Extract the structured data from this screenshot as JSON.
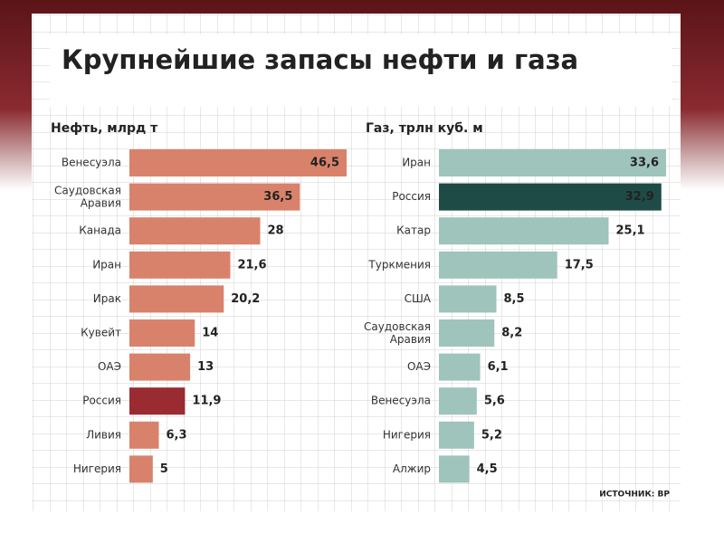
{
  "title": "Крупнейшие запасы нефти и газа",
  "source": "ИСТОЧНИК: BP",
  "chart_data": [
    {
      "type": "bar",
      "orientation": "horizontal",
      "title": "Нефть, млрд т",
      "categories": [
        "Венесуэла",
        "Саудовская Аравия",
        "Канада",
        "Иран",
        "Ирак",
        "Кувейт",
        "ОАЭ",
        "Россия",
        "Ливия",
        "Нигерия"
      ],
      "values": [
        46.5,
        36.5,
        28,
        21.6,
        20.2,
        14,
        13,
        11.9,
        6.3,
        5
      ],
      "value_labels": [
        "46,5",
        "36,5",
        "28",
        "21,6",
        "20,2",
        "14",
        "13",
        "11,9",
        "6,3",
        "5"
      ],
      "colors": [
        "#d9826b",
        "#d9826b",
        "#d9826b",
        "#d9826b",
        "#d9826b",
        "#d9826b",
        "#d9826b",
        "#9a2b31",
        "#d9826b",
        "#d9826b"
      ]
    },
    {
      "type": "bar",
      "orientation": "horizontal",
      "title": "Газ, трлн куб. м",
      "categories": [
        "Иран",
        "Россия",
        "Катар",
        "Туркмения",
        "США",
        "Саудовская Аравия",
        "ОАЭ",
        "Венесуэла",
        "Нигерия",
        "Алжир"
      ],
      "values": [
        33.6,
        32.9,
        25.1,
        17.5,
        8.5,
        8.2,
        6.1,
        5.6,
        5.2,
        4.5
      ],
      "value_labels": [
        "33,6",
        "32,9",
        "25,1",
        "17,5",
        "8,5",
        "8,2",
        "6,1",
        "5,6",
        "5,2",
        "4,5"
      ],
      "colors": [
        "#9ec4bc",
        "#1f4b47",
        "#9ec4bc",
        "#9ec4bc",
        "#9ec4bc",
        "#9ec4bc",
        "#9ec4bc",
        "#9ec4bc",
        "#9ec4bc",
        "#9ec4bc"
      ]
    }
  ]
}
